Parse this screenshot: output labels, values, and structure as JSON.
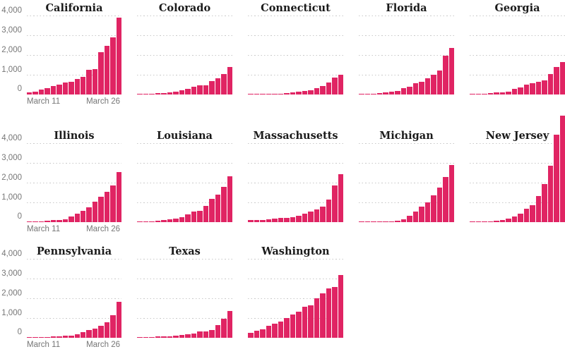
{
  "chart_data": {
    "type": "bar",
    "title": "",
    "description_semantics": "small-multiple bar charts of cumulative cases per US state, daily bars",
    "x_start_label": "March 11",
    "x_end_label": "March 26",
    "n_bars_per_panel": 16,
    "y_axis": {
      "ylim": [
        0,
        4000
      ],
      "tick_labels_top_to_bottom": [
        "4,000",
        "3,000",
        "2,000",
        "1,000",
        "0"
      ],
      "tick_values_top_to_bottom": [
        4000,
        3000,
        2000,
        1000,
        0
      ],
      "grid": "dotted"
    },
    "colors": {
      "bar": "#e02463",
      "grid": "#c9c9c9",
      "title_text": "#1a1a1a",
      "axis_text": "#767676",
      "background": "#ffffff"
    },
    "legend": "none",
    "rows": [
      {
        "panels": [
          {
            "title": "California",
            "show_y_axis": true,
            "show_x_axis": true,
            "values": [
              100,
              150,
              250,
              320,
              430,
              490,
              590,
              650,
              780,
              900,
              1250,
              1280,
              2130,
              2480,
              2890,
              3890
            ]
          },
          {
            "title": "Colorado",
            "show_y_axis": false,
            "show_x_axis": false,
            "values": [
              20,
              30,
              45,
              60,
              80,
              100,
              140,
              200,
              280,
              390,
              475,
              480,
              670,
              820,
              1040,
              1380
            ]
          },
          {
            "title": "Connecticut",
            "show_y_axis": false,
            "show_x_axis": false,
            "values": [
              10,
              12,
              15,
              20,
              26,
              40,
              70,
              96,
              160,
              195,
              225,
              330,
              415,
              620,
              875,
              1010
            ]
          },
          {
            "title": "Florida",
            "show_y_axis": false,
            "show_x_axis": false,
            "values": [
              30,
              35,
              50,
              77,
              100,
              140,
              190,
              310,
              390,
              560,
              660,
              830,
              1010,
              1230,
              1980,
              2360
            ]
          },
          {
            "title": "Georgia",
            "show_y_axis": false,
            "show_x_axis": false,
            "values": [
              20,
              30,
              42,
              66,
              99,
              120,
              150,
              270,
              340,
              495,
              555,
              640,
              720,
              1050,
              1390,
              1660
            ]
          }
        ]
      },
      {
        "panels": [
          {
            "title": "Illinois",
            "show_y_axis": true,
            "show_x_axis": true,
            "values": [
              25,
              32,
              46,
              64,
              93,
              105,
              160,
              290,
              420,
              585,
              750,
              1050,
              1290,
              1535,
              1865,
              2540
            ]
          },
          {
            "title": "Louisiana",
            "show_y_axis": false,
            "show_x_axis": false,
            "values": [
              15,
              20,
              36,
              77,
              103,
              136,
              196,
              257,
              392,
              537,
              585,
              837,
              1170,
              1390,
              1795,
              2330
            ]
          },
          {
            "title": "Massachusetts",
            "show_y_axis": false,
            "show_x_axis": false,
            "values": [
              95,
              108,
              123,
              138,
              164,
              197,
              218,
              256,
              328,
              413,
              525,
              646,
              777,
              1160,
              1840,
              2440
            ]
          },
          {
            "title": "Michigan",
            "show_y_axis": false,
            "show_x_axis": false,
            "values": [
              2,
              5,
              12,
              25,
              33,
              54,
              65,
              130,
              334,
              550,
              790,
              990,
              1345,
              1760,
              2300,
              2880
            ]
          },
          {
            "title": "New Jersey",
            "show_y_axis": false,
            "show_x_axis": false,
            "values": [
              10,
              20,
              30,
              50,
              80,
              100,
              180,
              270,
              430,
              670,
              860,
              1330,
              1930,
              2860,
              4430,
              5390
            ]
          }
        ]
      },
      {
        "panels": [
          {
            "title": "Pennsylvania",
            "show_y_axis": true,
            "show_x_axis": true,
            "values": [
              16,
              22,
              33,
              47,
              63,
              76,
              96,
              120,
              180,
              275,
              394,
              478,
              600,
              800,
              1135,
              1830
            ]
          },
          {
            "title": "Texas",
            "show_y_axis": false,
            "show_x_axis": false,
            "values": [
              21,
              27,
              39,
              60,
              72,
              85,
              110,
              150,
              195,
              230,
              305,
              335,
              410,
              650,
              965,
              1355
            ]
          },
          {
            "title": "Washington",
            "show_y_axis": false,
            "show_x_axis": false,
            "values": [
              260,
              355,
              415,
              590,
              710,
              830,
              995,
              1185,
              1325,
              1560,
              1660,
              1990,
              2250,
              2510,
              2570,
              3195
            ]
          }
        ]
      }
    ]
  }
}
